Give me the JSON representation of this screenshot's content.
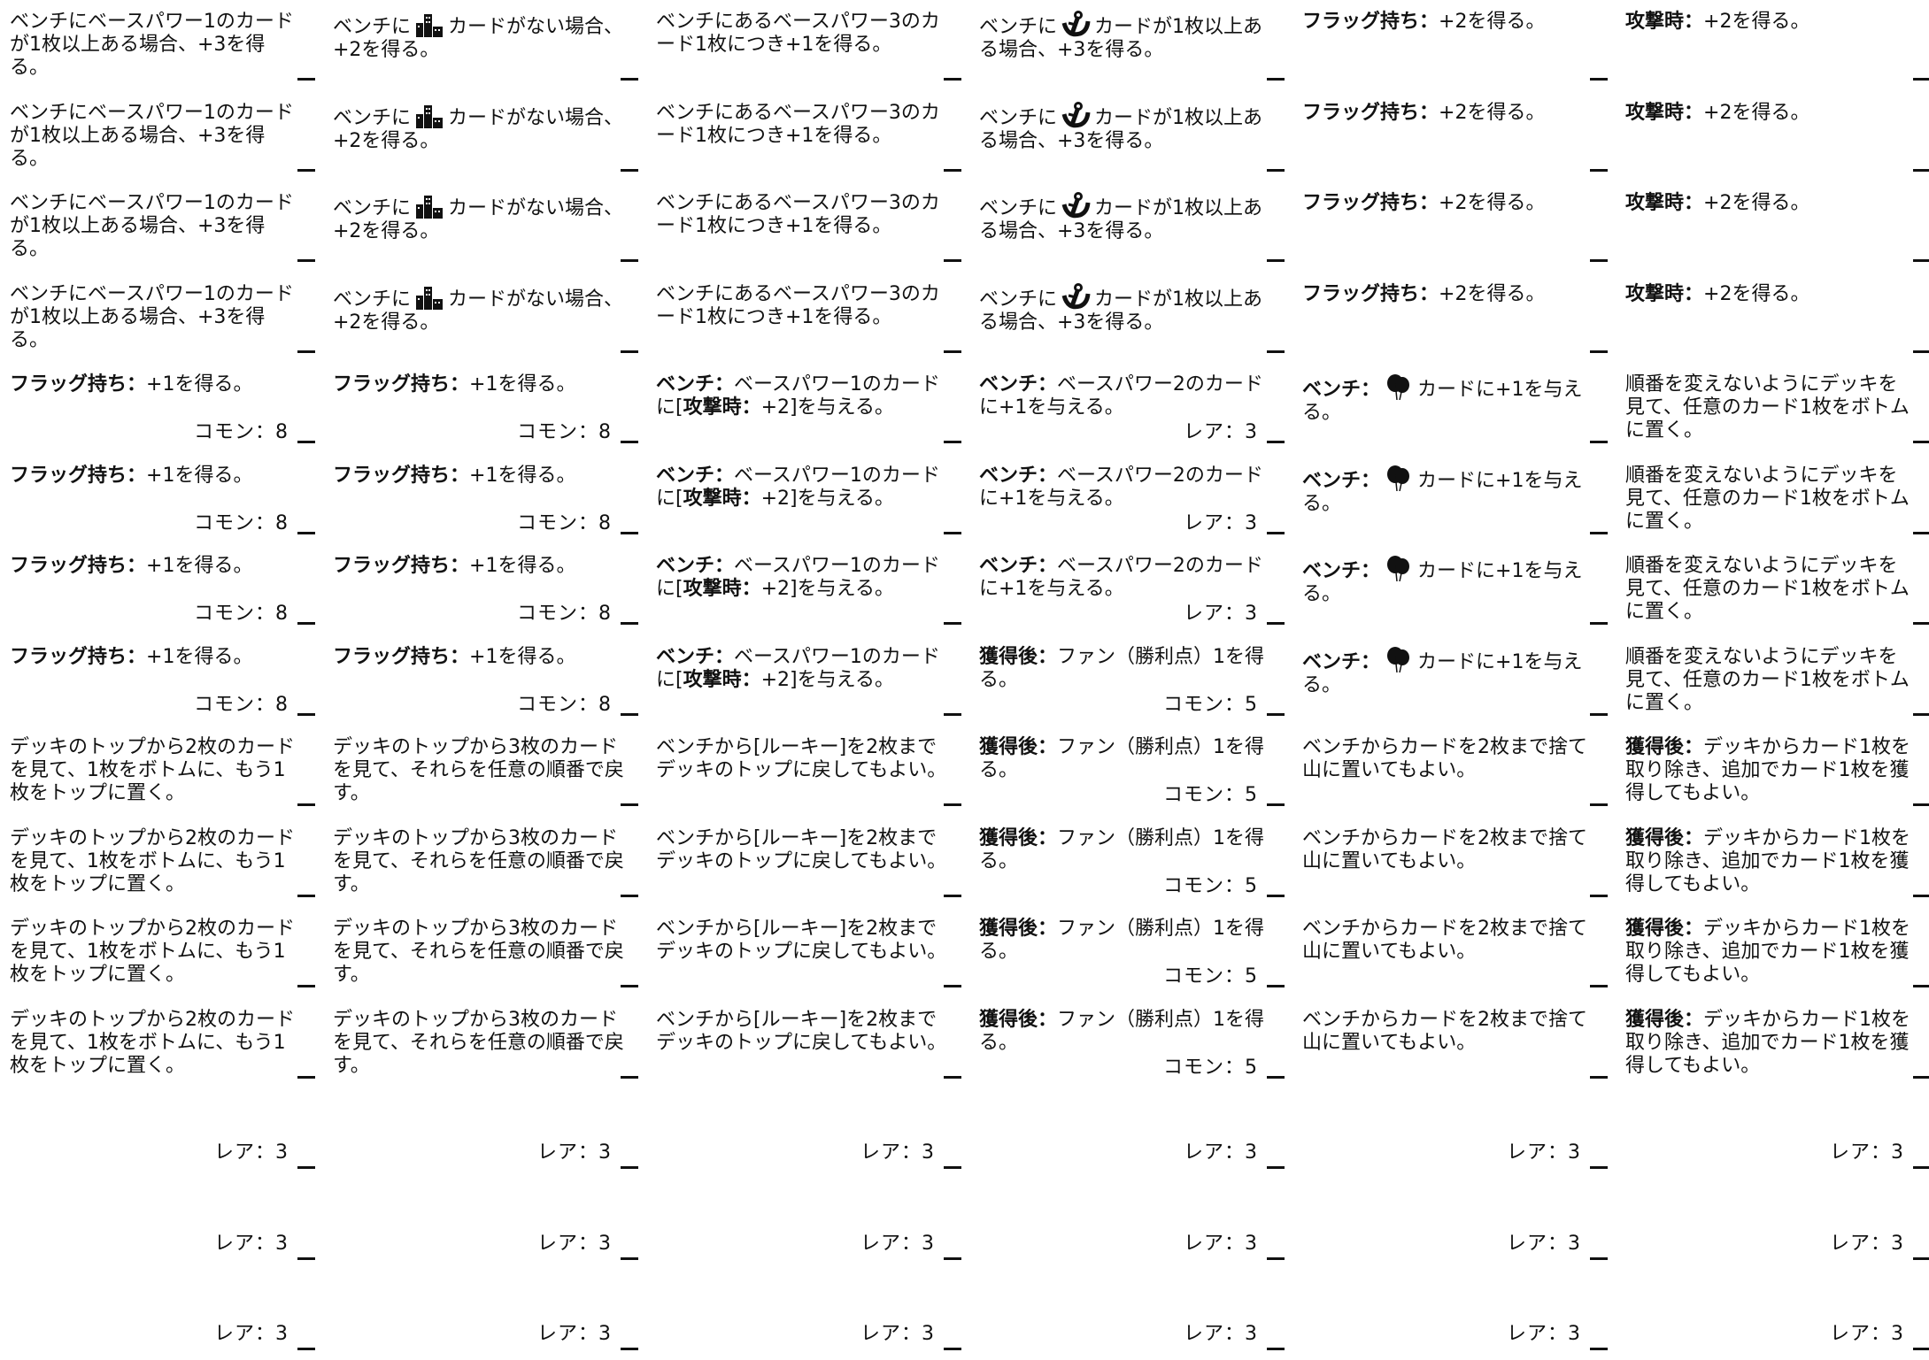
{
  "columns": [
    {
      "cells": [
        {
          "text": "ベンチにベースパワー1のカードが1枚以上ある場合、+3を得る。"
        },
        {
          "text": "ベンチにベースパワー1のカードが1枚以上ある場合、+3を得る。"
        },
        {
          "text": "ベンチにベースパワー1のカードが1枚以上ある場合、+3を得る。"
        },
        {
          "text": "ベンチにベースパワー1のカードが1枚以上ある場合、+3を得る。"
        },
        {
          "kw": "フラッグ持ち：",
          "text": "+1を得る。",
          "rarity": "コモン：8"
        },
        {
          "kw": "フラッグ持ち：",
          "text": "+1を得る。",
          "rarity": "コモン：8"
        },
        {
          "kw": "フラッグ持ち：",
          "text": "+1を得る。",
          "rarity": "コモン：8"
        },
        {
          "kw": "フラッグ持ち：",
          "text": "+1を得る。",
          "rarity": "コモン：8"
        },
        {
          "text": "デッキのトップから2枚のカードを見て、1枚をボトムに、もう1枚をトップに置く。"
        },
        {
          "text": "デッキのトップから2枚のカードを見て、1枚をボトムに、もう1枚をトップに置く。"
        },
        {
          "text": "デッキのトップから2枚のカードを見て、1枚をボトムに、もう1枚をトップに置く。"
        },
        {
          "text": "デッキのトップから2枚のカードを見て、1枚をボトムに、もう1枚をトップに置く。"
        },
        {
          "rarity": "レア：3"
        },
        {
          "rarity": "レア：3"
        },
        {
          "rarity": "レア：3"
        }
      ]
    },
    {
      "cells": [
        {
          "pre": "ベンチに",
          "icon": "city-icon",
          "text": "カードがない場合、+2を得る。"
        },
        {
          "pre": "ベンチに",
          "icon": "city-icon",
          "text": "カードがない場合、+2を得る。"
        },
        {
          "pre": "ベンチに",
          "icon": "city-icon",
          "text": "カードがない場合、+2を得る。"
        },
        {
          "pre": "ベンチに",
          "icon": "city-icon",
          "text": "カードがない場合、+2を得る。"
        },
        {
          "kw": "フラッグ持ち：",
          "text": "+1を得る。",
          "rarity": "コモン：8"
        },
        {
          "kw": "フラッグ持ち：",
          "text": "+1を得る。",
          "rarity": "コモン：8"
        },
        {
          "kw": "フラッグ持ち：",
          "text": "+1を得る。",
          "rarity": "コモン：8"
        },
        {
          "kw": "フラッグ持ち：",
          "text": "+1を得る。",
          "rarity": "コモン：8"
        },
        {
          "text": "デッキのトップから3枚のカードを見て、それらを任意の順番で戻す。"
        },
        {
          "text": "デッキのトップから3枚のカードを見て、それらを任意の順番で戻す。"
        },
        {
          "text": "デッキのトップから3枚のカードを見て、それらを任意の順番で戻す。"
        },
        {
          "text": "デッキのトップから3枚のカードを見て、それらを任意の順番で戻す。"
        },
        {
          "rarity": "レア：3"
        },
        {
          "rarity": "レア：3"
        },
        {
          "rarity": "レア：3"
        }
      ]
    },
    {
      "cells": [
        {
          "text": "ベンチにあるベースパワー3のカード1枚につき+1を得る。"
        },
        {
          "text": "ベンチにあるベースパワー3のカード1枚につき+1を得る。"
        },
        {
          "text": "ベンチにあるベースパワー3のカード1枚につき+1を得る。"
        },
        {
          "text": "ベンチにあるベースパワー3のカード1枚につき+1を得る。"
        },
        {
          "kw": "ベンチ：",
          "text": "ベースパワー1のカードに[",
          "kw2": "攻撃時：",
          "text2": "+2]を与える。"
        },
        {
          "kw": "ベンチ：",
          "text": "ベースパワー1のカードに[",
          "kw2": "攻撃時：",
          "text2": "+2]を与える。"
        },
        {
          "kw": "ベンチ：",
          "text": "ベースパワー1のカードに[",
          "kw2": "攻撃時：",
          "text2": "+2]を与える。"
        },
        {
          "kw": "ベンチ：",
          "text": "ベースパワー1のカードに[",
          "kw2": "攻撃時：",
          "text2": "+2]を与える。"
        },
        {
          "text": "ベンチから[ルーキー]を2枚までデッキのトップに戻してもよい。"
        },
        {
          "text": "ベンチから[ルーキー]を2枚までデッキのトップに戻してもよい。"
        },
        {
          "text": "ベンチから[ルーキー]を2枚までデッキのトップに戻してもよい。"
        },
        {
          "text": "ベンチから[ルーキー]を2枚までデッキのトップに戻してもよい。"
        },
        {
          "rarity": "レア：3"
        },
        {
          "rarity": "レア：3"
        },
        {
          "rarity": "レア：3"
        }
      ]
    },
    {
      "cells": [
        {
          "pre": "ベンチに",
          "icon": "anchor-icon",
          "text": "カードが1枚以上ある場合、+3を得る。"
        },
        {
          "pre": "ベンチに",
          "icon": "anchor-icon",
          "text": "カードが1枚以上ある場合、+3を得る。"
        },
        {
          "pre": "ベンチに",
          "icon": "anchor-icon",
          "text": "カードが1枚以上ある場合、+3を得る。"
        },
        {
          "pre": "ベンチに",
          "icon": "anchor-icon",
          "text": "カードが1枚以上ある場合、+3を得る。"
        },
        {
          "kw": "ベンチ：",
          "text": "ベースパワー2のカードに+1を与える。",
          "rarity": "レア：3"
        },
        {
          "kw": "ベンチ：",
          "text": "ベースパワー2のカードに+1を与える。",
          "rarity": "レア：3"
        },
        {
          "kw": "ベンチ：",
          "text": "ベースパワー2のカードに+1を与える。",
          "rarity": "レア：3"
        },
        {
          "kw": "獲得後：",
          "text": "ファン（勝利点）1を得る。",
          "rarity": "コモン：5"
        },
        {
          "kw": "獲得後：",
          "text": "ファン（勝利点）1を得る。",
          "rarity": "コモン：5"
        },
        {
          "kw": "獲得後：",
          "text": "ファン（勝利点）1を得る。",
          "rarity": "コモン：5"
        },
        {
          "kw": "獲得後：",
          "text": "ファン（勝利点）1を得る。",
          "rarity": "コモン：5"
        },
        {
          "kw": "獲得後：",
          "text": "ファン（勝利点）1を得る。",
          "rarity": "コモン：5"
        },
        {
          "rarity": "レア：3"
        },
        {
          "rarity": "レア：3"
        },
        {
          "rarity": "レア：3"
        }
      ]
    },
    {
      "cells": [
        {
          "kw": "フラッグ持ち：",
          "text": "+2を得る。"
        },
        {
          "kw": "フラッグ持ち：",
          "text": "+2を得る。"
        },
        {
          "kw": "フラッグ持ち：",
          "text": "+2を得る。"
        },
        {
          "kw": "フラッグ持ち：",
          "text": "+2を得る。"
        },
        {
          "kw": "ベンチ：",
          "icon": "balloon-icon",
          "text": "カードに+1を与える。"
        },
        {
          "kw": "ベンチ：",
          "icon": "balloon-icon",
          "text": "カードに+1を与える。"
        },
        {
          "kw": "ベンチ：",
          "icon": "balloon-icon",
          "text": "カードに+1を与える。"
        },
        {
          "kw": "ベンチ：",
          "icon": "balloon-icon",
          "text": "カードに+1を与える。"
        },
        {
          "text": "ベンチからカードを2枚まで捨て山に置いてもよい。"
        },
        {
          "text": "ベンチからカードを2枚まで捨て山に置いてもよい。"
        },
        {
          "text": "ベンチからカードを2枚まで捨て山に置いてもよい。"
        },
        {
          "text": "ベンチからカードを2枚まで捨て山に置いてもよい。"
        },
        {
          "rarity": "レア：3"
        },
        {
          "rarity": "レア：3"
        },
        {
          "rarity": "レア：3"
        }
      ]
    },
    {
      "cells": [
        {
          "kw": "攻撃時：",
          "text": "+2を得る。"
        },
        {
          "kw": "攻撃時：",
          "text": "+2を得る。"
        },
        {
          "kw": "攻撃時：",
          "text": "+2を得る。"
        },
        {
          "kw": "攻撃時：",
          "text": "+2を得る。"
        },
        {
          "text": "順番を変えないようにデッキを見て、任意のカード1枚をボトムに置く。"
        },
        {
          "text": "順番を変えないようにデッキを見て、任意のカード1枚をボトムに置く。"
        },
        {
          "text": "順番を変えないようにデッキを見て、任意のカード1枚をボトムに置く。"
        },
        {
          "text": "順番を変えないようにデッキを見て、任意のカード1枚をボトムに置く。"
        },
        {
          "kw": "獲得後：",
          "text": "デッキからカード1枚を取り除き、追加でカード1枚を獲得してもよい。"
        },
        {
          "kw": "獲得後：",
          "text": "デッキからカード1枚を取り除き、追加でカード1枚を獲得してもよい。"
        },
        {
          "kw": "獲得後：",
          "text": "デッキからカード1枚を取り除き、追加でカード1枚を獲得してもよい。"
        },
        {
          "kw": "獲得後：",
          "text": "デッキからカード1枚を取り除き、追加でカード1枚を獲得してもよい。"
        },
        {
          "rarity": "レア：3"
        },
        {
          "rarity": "レア：3"
        },
        {
          "rarity": "レア：3"
        }
      ]
    }
  ]
}
